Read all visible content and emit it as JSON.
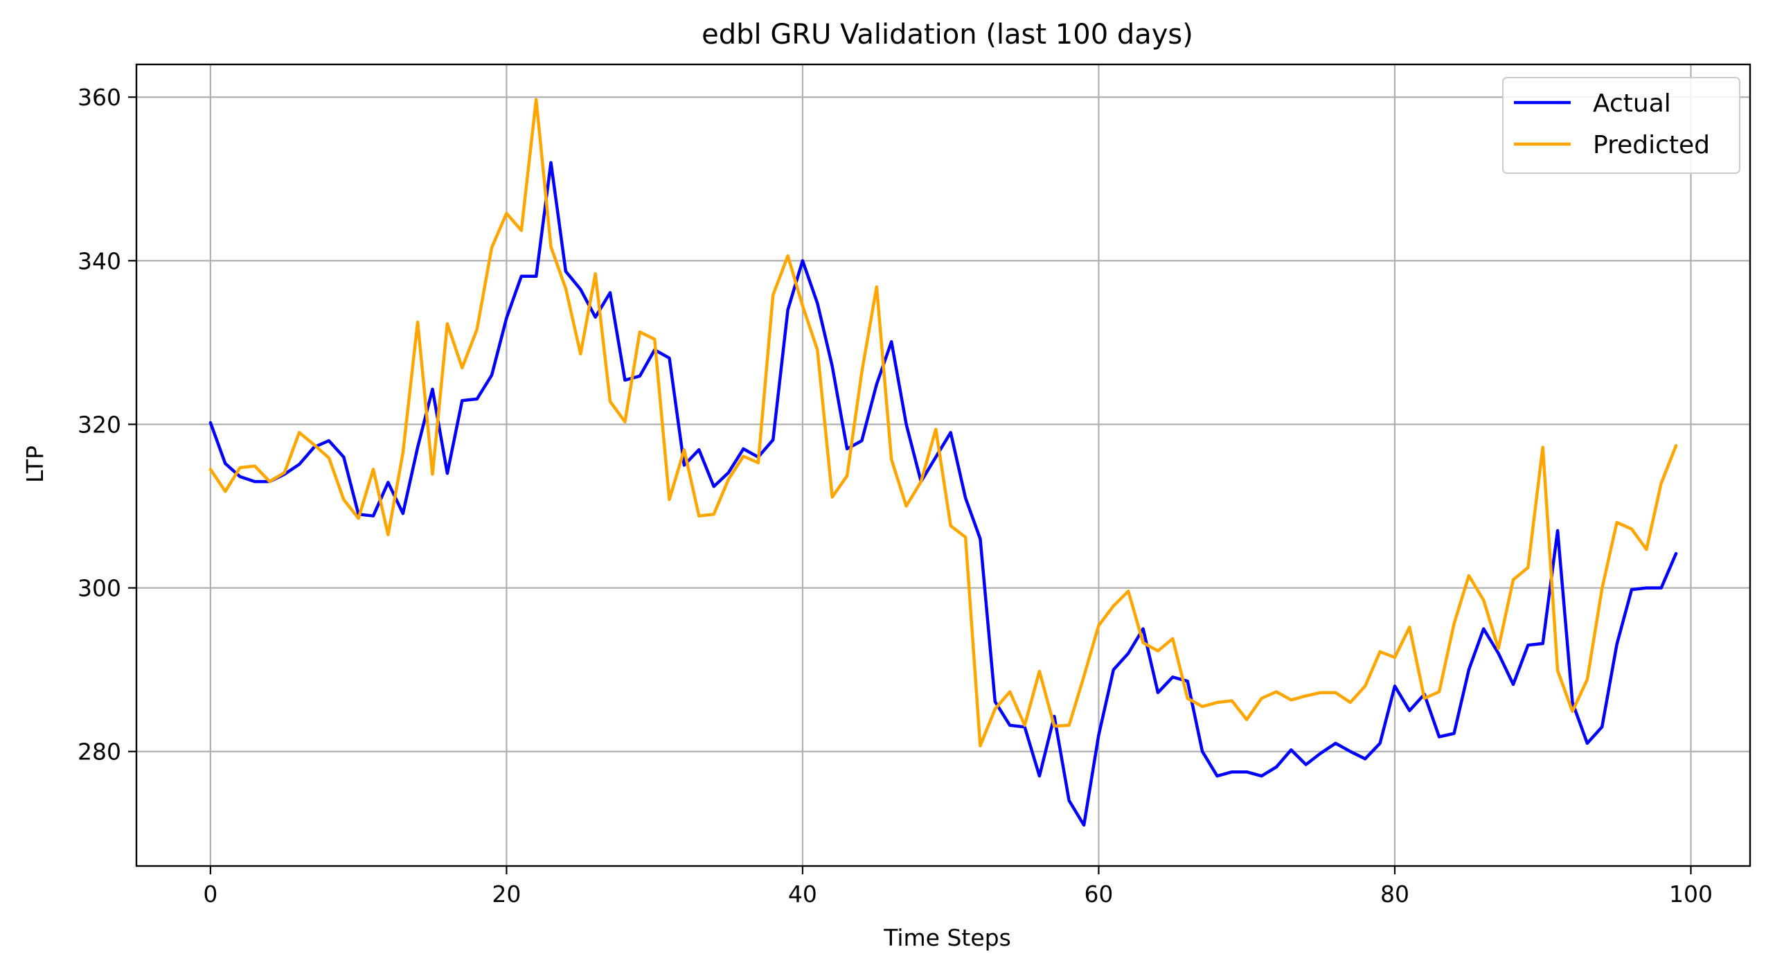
{
  "chart_data": {
    "type": "line",
    "title": "edbl GRU Validation (last 100 days)",
    "xlabel": "Time Steps",
    "ylabel": "LTP",
    "xlim": [
      -5,
      104
    ],
    "ylim": [
      266,
      364
    ],
    "xticks": [
      0,
      20,
      40,
      60,
      80,
      100
    ],
    "yticks": [
      280,
      300,
      320,
      340,
      360
    ],
    "grid": true,
    "legend_position": "top-right",
    "x": [
      0,
      1,
      2,
      3,
      4,
      5,
      6,
      7,
      8,
      9,
      10,
      11,
      12,
      13,
      14,
      15,
      16,
      17,
      18,
      19,
      20,
      21,
      22,
      23,
      24,
      25,
      26,
      27,
      28,
      29,
      30,
      31,
      32,
      33,
      34,
      35,
      36,
      37,
      38,
      39,
      40,
      41,
      42,
      43,
      44,
      45,
      46,
      47,
      48,
      49,
      50,
      51,
      52,
      53,
      54,
      55,
      56,
      57,
      58,
      59,
      60,
      61,
      62,
      63,
      64,
      65,
      66,
      67,
      68,
      69,
      70,
      71,
      72,
      73,
      74,
      75,
      76,
      77,
      78,
      79,
      80,
      81,
      82,
      83,
      84,
      85,
      86,
      87,
      88,
      89,
      90,
      91,
      92,
      93,
      94,
      95,
      96,
      97,
      98,
      99
    ],
    "series": [
      {
        "name": "Actual",
        "color": "#0000ff",
        "values": [
          320.2,
          315.2,
          313.6,
          313.0,
          313.0,
          313.9,
          315.1,
          317.2,
          318.0,
          316.0,
          309.0,
          308.8,
          312.9,
          309.1,
          317.2,
          324.3,
          314.0,
          322.9,
          323.1,
          326.0,
          333.0,
          338.1,
          338.1,
          352.0,
          338.7,
          336.5,
          333.1,
          336.1,
          325.4,
          325.9,
          329.1,
          328.1,
          315.0,
          316.9,
          312.4,
          314.1,
          317.0,
          316.0,
          318.1,
          334.0,
          340.0,
          334.8,
          327.1,
          317.0,
          318.0,
          324.9,
          330.1,
          320.0,
          313.0,
          316.0,
          319.0,
          311.0,
          306.0,
          286.1,
          283.2,
          283.0,
          277.0,
          284.3,
          274.0,
          271.0,
          282.0,
          290.0,
          292.0,
          295.0,
          287.2,
          289.1,
          288.6,
          280.0,
          277.0,
          277.5,
          277.5,
          277.0,
          278.1,
          280.2,
          278.4,
          279.8,
          281.0,
          280.0,
          279.1,
          281.0,
          288.0,
          285.0,
          287.0,
          281.8,
          282.2,
          290.0,
          295.0,
          292.0,
          288.2,
          293.0,
          293.2,
          307.0,
          286.0,
          281.0,
          283.0,
          293.1,
          299.8,
          300.0,
          300.0,
          304.2
        ]
      },
      {
        "name": "Predicted",
        "color": "#ffa500",
        "values": [
          314.5,
          311.8,
          314.7,
          314.9,
          313.0,
          314.1,
          319.0,
          317.5,
          315.9,
          310.8,
          308.5,
          314.5,
          306.5,
          316.5,
          332.5,
          313.9,
          332.3,
          326.9,
          331.6,
          341.6,
          345.8,
          343.7,
          359.7,
          341.7,
          336.6,
          328.6,
          338.4,
          322.8,
          320.3,
          331.3,
          330.4,
          310.8,
          316.9,
          308.8,
          309.0,
          313.3,
          316.1,
          315.3,
          335.8,
          340.6,
          334.5,
          329.1,
          311.1,
          313.7,
          326.4,
          336.8,
          315.7,
          310.0,
          313.0,
          319.4,
          307.6,
          306.2,
          280.7,
          285.2,
          287.3,
          283.2,
          289.8,
          283.1,
          283.2,
          289.2,
          295.4,
          297.8,
          299.6,
          293.3,
          292.3,
          293.8,
          286.5,
          285.5,
          286.0,
          286.2,
          283.9,
          286.5,
          287.3,
          286.3,
          286.8,
          287.2,
          287.2,
          286.0,
          288.0,
          292.2,
          291.5,
          295.2,
          286.5,
          287.3,
          295.6,
          301.5,
          298.5,
          292.6,
          301.0,
          302.5,
          317.2,
          289.9,
          284.9,
          288.8,
          299.9,
          308.0,
          307.2,
          304.7,
          312.8,
          317.4
        ]
      }
    ]
  }
}
